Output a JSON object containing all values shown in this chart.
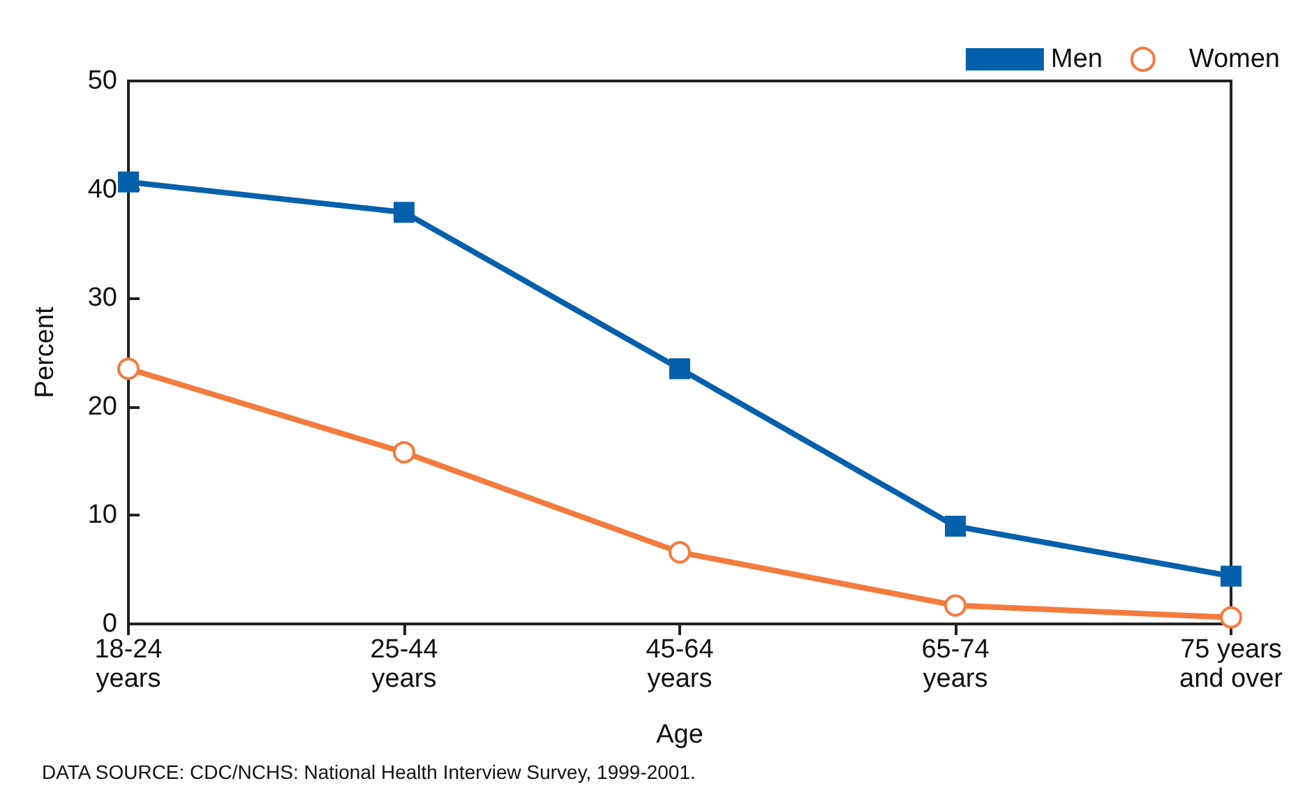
{
  "chart_data": {
    "type": "line",
    "xlabel": "Age",
    "ylabel": "Percent",
    "categories": [
      "18-24\nyears",
      "25-44\nyears",
      "45-64\nyears",
      "65-74\nyears",
      "75 years\nand over"
    ],
    "series": [
      {
        "name": "Men",
        "color": "#0560ac",
        "marker": "square",
        "values": [
          40.7,
          37.9,
          23.5,
          9.0,
          4.4
        ]
      },
      {
        "name": "Women",
        "color": "#f47b3e",
        "marker": "circle",
        "values": [
          23.5,
          15.8,
          6.6,
          1.7,
          0.6
        ]
      }
    ],
    "ylim": [
      0,
      50
    ],
    "yticks": [
      0,
      10,
      20,
      30,
      40,
      50
    ],
    "grid": false,
    "legend": "top right",
    "line_style": "solid",
    "annotations": [
      "DATA SOURCE: CDC/NCHS: National Health Interview Survey, 1999-2001."
    ]
  }
}
